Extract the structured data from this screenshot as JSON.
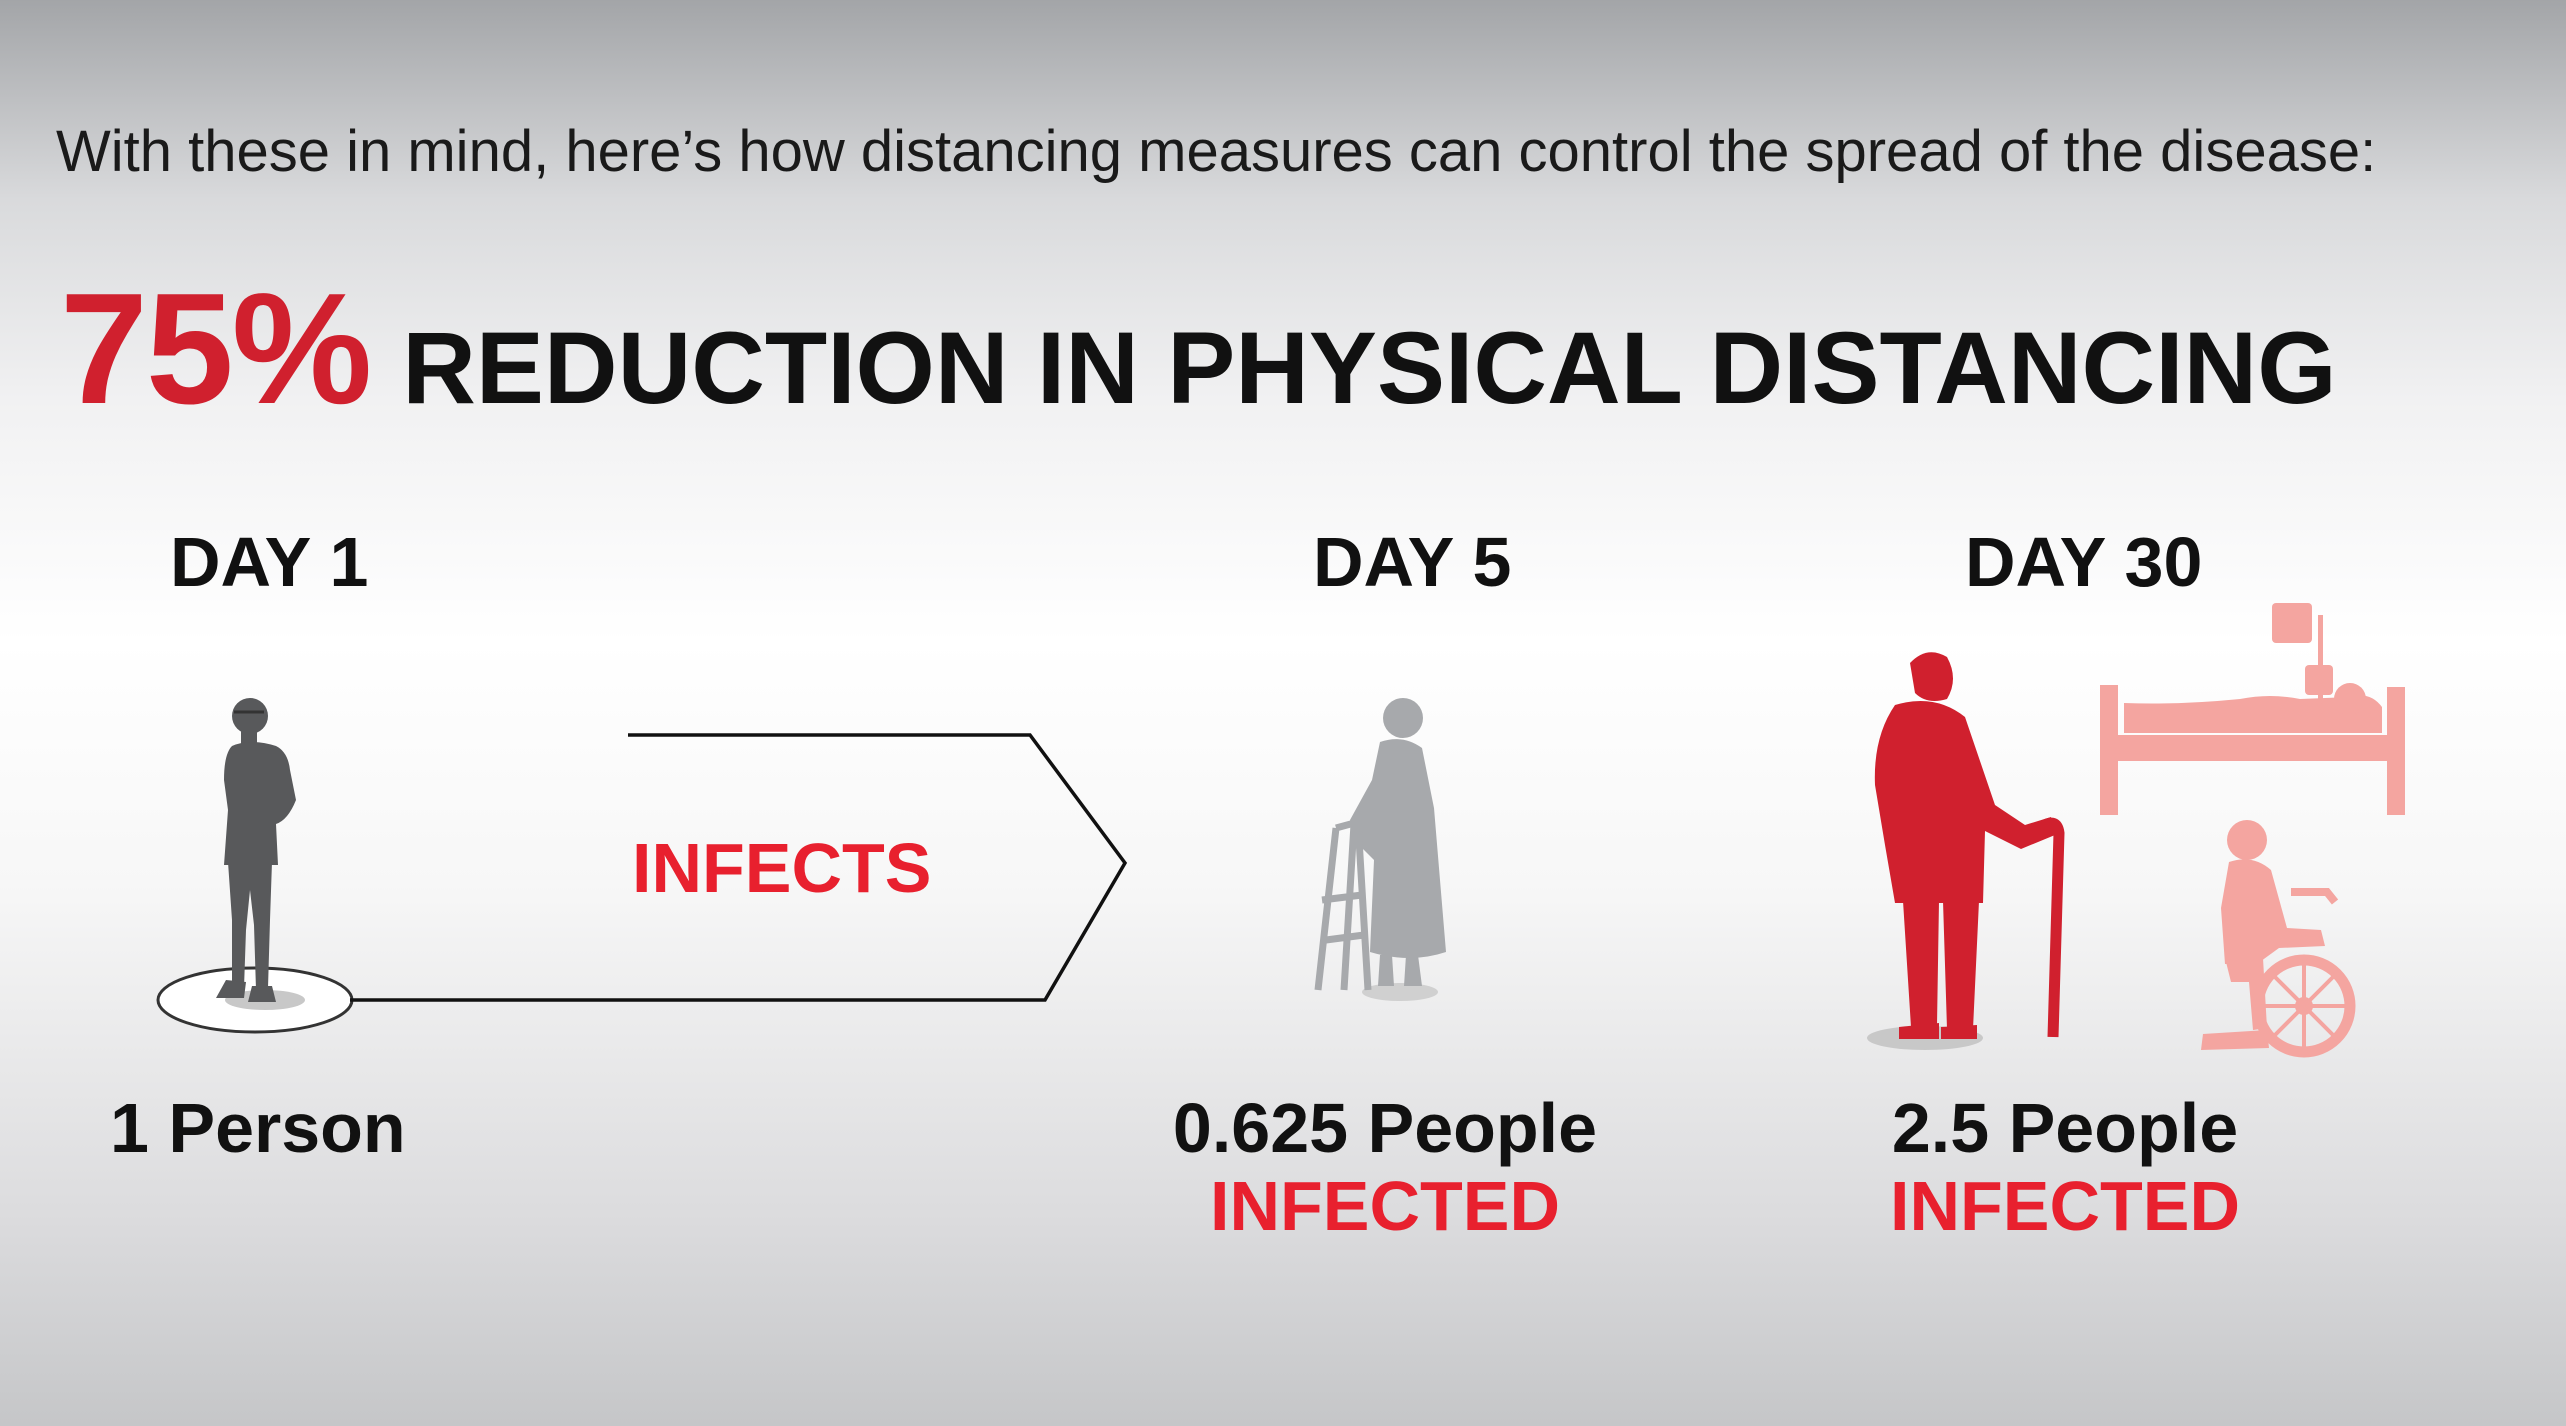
{
  "intro_text": "With these in mind, here’s how distancing measures can control the spread of the disease:",
  "headline": {
    "percent": "75%",
    "text": "REDUCTION IN PHYSICAL DISTANCING"
  },
  "stages": [
    {
      "day": "DAY 1",
      "count": "1 Person",
      "status": ""
    },
    {
      "day": "DAY 5",
      "count": "0.625 People",
      "status": "INFECTED"
    },
    {
      "day": "DAY 30",
      "count": "2.5 People",
      "status": "INFECTED"
    }
  ],
  "arrow_label": "INFECTS",
  "colors": {
    "accent_red": "#e8202e",
    "dark_gray": "#58595b",
    "light_gray": "#a7a9ac",
    "pale_red": "#f4a5a0"
  },
  "icons": [
    "person-standing-icon",
    "elderly-walker-icon",
    "elderly-cane-icon",
    "hospital-bed-icon",
    "wheelchair-icon"
  ]
}
